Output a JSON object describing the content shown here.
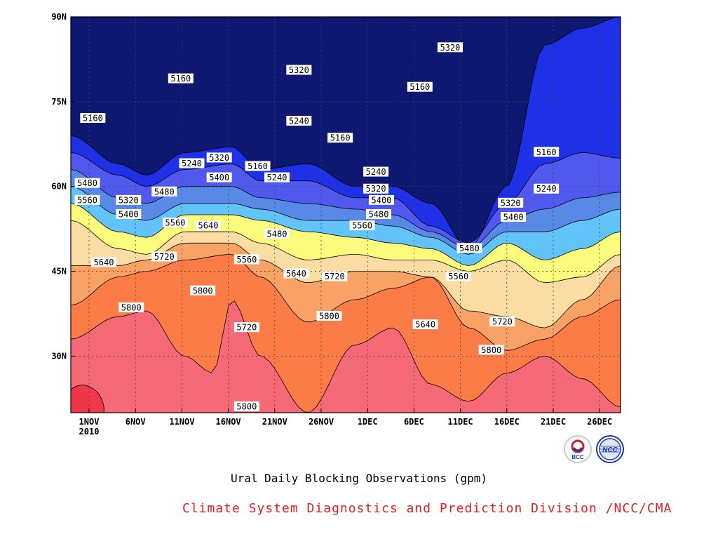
{
  "chart_data": {
    "type": "contour",
    "title": "Ural Daily Blocking Observations (gpm)",
    "x_ticks": [
      "1NOV",
      "6NOV",
      "11NOV",
      "16NOV",
      "21NOV",
      "26NOV",
      "1DEC",
      "6DEC",
      "11DEC",
      "16DEC",
      "21DEC",
      "26DEC"
    ],
    "x_year": "2010",
    "y_ticks": [
      "90N",
      "75N",
      "60N",
      "45N",
      "30N"
    ],
    "ylim": [
      20,
      90
    ],
    "levels": [
      5160,
      5240,
      5320,
      5400,
      5480,
      5560,
      5640,
      5720,
      5800
    ],
    "fill_colors": [
      "#0f1871",
      "#1e31e6",
      "#5058ee",
      "#5889e6",
      "#62c3f9",
      "#fbfb7d",
      "#fbdca2",
      "#f9a266",
      "#fb7c46",
      "#f66a78",
      "#ef3749"
    ],
    "grid": true,
    "contour_labels": [
      {
        "v": "5160",
        "x": 4,
        "y": 72
      },
      {
        "v": "5160",
        "x": 20,
        "y": 79
      },
      {
        "v": "5160",
        "x": 34,
        "y": 63.5
      },
      {
        "v": "5160",
        "x": 49,
        "y": 68.5
      },
      {
        "v": "5160",
        "x": 63.5,
        "y": 77.5
      },
      {
        "v": "5160",
        "x": 86.5,
        "y": 66
      },
      {
        "v": "5240",
        "x": 22,
        "y": 64
      },
      {
        "v": "5240",
        "x": 41.5,
        "y": 71.5
      },
      {
        "v": "5240",
        "x": 37.5,
        "y": 61.5
      },
      {
        "v": "5240",
        "x": 55.5,
        "y": 62.5
      },
      {
        "v": "5240",
        "x": 86.5,
        "y": 59.5
      },
      {
        "v": "5320",
        "x": 27,
        "y": 65
      },
      {
        "v": "5320",
        "x": 41.5,
        "y": 80.5
      },
      {
        "v": "5320",
        "x": 10.5,
        "y": 57.5
      },
      {
        "v": "5320",
        "x": 55.5,
        "y": 59.5
      },
      {
        "v": "5320",
        "x": 69,
        "y": 84.5
      },
      {
        "v": "5320",
        "x": 80,
        "y": 57
      },
      {
        "v": "5400",
        "x": 10.5,
        "y": 55
      },
      {
        "v": "5400",
        "x": 27,
        "y": 61.5
      },
      {
        "v": "5400",
        "x": 56.5,
        "y": 57.5
      },
      {
        "v": "5400",
        "x": 80.5,
        "y": 54.5
      },
      {
        "v": "5480",
        "x": 3,
        "y": 60.5
      },
      {
        "v": "5480",
        "x": 17,
        "y": 59
      },
      {
        "v": "5480",
        "x": 37.5,
        "y": 51.5
      },
      {
        "v": "5480",
        "x": 56,
        "y": 55
      },
      {
        "v": "5480",
        "x": 72.5,
        "y": 49
      },
      {
        "v": "5560",
        "x": 3,
        "y": 57.5
      },
      {
        "v": "5560",
        "x": 19,
        "y": 53.5
      },
      {
        "v": "5560",
        "x": 32,
        "y": 47
      },
      {
        "v": "5560",
        "x": 53,
        "y": 53
      },
      {
        "v": "5560",
        "x": 70.5,
        "y": 44
      },
      {
        "v": "5640",
        "x": 6,
        "y": 46.5
      },
      {
        "v": "5640",
        "x": 25,
        "y": 53
      },
      {
        "v": "5640",
        "x": 41,
        "y": 44.5
      },
      {
        "v": "5640",
        "x": 64.5,
        "y": 35.5
      },
      {
        "v": "5720",
        "x": 17,
        "y": 47.5
      },
      {
        "v": "5720",
        "x": 32,
        "y": 35
      },
      {
        "v": "5720",
        "x": 48,
        "y": 44
      },
      {
        "v": "5720",
        "x": 78.5,
        "y": 36
      },
      {
        "v": "5800",
        "x": 11,
        "y": 38.5
      },
      {
        "v": "5800",
        "x": 24,
        "y": 41.5
      },
      {
        "v": "5800",
        "x": 32,
        "y": 21
      },
      {
        "v": "5800",
        "x": 47,
        "y": 37
      },
      {
        "v": "5800",
        "x": 76.5,
        "y": 31
      }
    ]
  },
  "footer": {
    "subtitle": "Ural Daily Blocking Observations (gpm)",
    "credit": "Climate System Diagnostics and Prediction Division /NCC/CMA",
    "logo_left": "BCC",
    "logo_right": "NCC"
  }
}
